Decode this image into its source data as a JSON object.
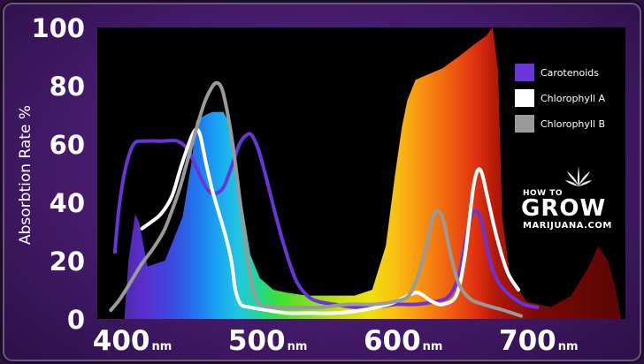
{
  "chart_data": {
    "type": "area",
    "title": "",
    "xlabel": "",
    "ylabel": "Absorbtion Rate %",
    "xlim": [
      365,
      755
    ],
    "ylim": [
      0,
      100
    ],
    "x_unit": "nm",
    "y_ticks": [
      0,
      20,
      40,
      60,
      80,
      100
    ],
    "x_ticks": [
      400,
      500,
      600,
      700
    ],
    "grid": false,
    "legend_position": "top-right",
    "background_spectrum": {
      "name": "",
      "points": [
        [
          385,
          0
        ],
        [
          388,
          20
        ],
        [
          393,
          36
        ],
        [
          396,
          33
        ],
        [
          402,
          18
        ],
        [
          415,
          20
        ],
        [
          428,
          35
        ],
        [
          435,
          55
        ],
        [
          438,
          68
        ],
        [
          445,
          70
        ],
        [
          450,
          71
        ],
        [
          458,
          71
        ],
        [
          464,
          66
        ],
        [
          470,
          45
        ],
        [
          478,
          22
        ],
        [
          485,
          14
        ],
        [
          495,
          10
        ],
        [
          505,
          9
        ],
        [
          520,
          8
        ],
        [
          540,
          8
        ],
        [
          555,
          8
        ],
        [
          568,
          10
        ],
        [
          578,
          25
        ],
        [
          585,
          50
        ],
        [
          590,
          66
        ],
        [
          594,
          75
        ],
        [
          600,
          82
        ],
        [
          610,
          84
        ],
        [
          620,
          86
        ],
        [
          632,
          90
        ],
        [
          643,
          94
        ],
        [
          652,
          97
        ],
        [
          657,
          100
        ],
        [
          661,
          85
        ],
        [
          664,
          35
        ],
        [
          670,
          14
        ],
        [
          682,
          6
        ],
        [
          700,
          4
        ],
        [
          715,
          8
        ],
        [
          728,
          18
        ],
        [
          735,
          25
        ],
        [
          742,
          20
        ],
        [
          748,
          10
        ],
        [
          752,
          0
        ]
      ]
    },
    "series": [
      {
        "name": "Carotenoids",
        "color": "#6a35d8",
        "points": [
          [
            378,
            23
          ],
          [
            381,
            38
          ],
          [
            386,
            52
          ],
          [
            392,
            60
          ],
          [
            400,
            61
          ],
          [
            412,
            61
          ],
          [
            424,
            61
          ],
          [
            432,
            58
          ],
          [
            438,
            52
          ],
          [
            443,
            47
          ],
          [
            447,
            44
          ],
          [
            452,
            43
          ],
          [
            458,
            45
          ],
          [
            464,
            52
          ],
          [
            470,
            60
          ],
          [
            475,
            63
          ],
          [
            479,
            63
          ],
          [
            484,
            58
          ],
          [
            490,
            48
          ],
          [
            497,
            35
          ],
          [
            505,
            22
          ],
          [
            512,
            13
          ],
          [
            520,
            8
          ],
          [
            528,
            6
          ],
          [
            540,
            5
          ],
          [
            555,
            4
          ],
          [
            570,
            4
          ],
          [
            585,
            5
          ],
          [
            600,
            5
          ],
          [
            615,
            6
          ],
          [
            625,
            8
          ],
          [
            632,
            15
          ],
          [
            637,
            27
          ],
          [
            641,
            35
          ],
          [
            645,
            37
          ],
          [
            649,
            33
          ],
          [
            653,
            24
          ],
          [
            657,
            17
          ],
          [
            662,
            12
          ],
          [
            670,
            8
          ],
          [
            680,
            5
          ],
          [
            690,
            4
          ]
        ]
      },
      {
        "name": "Chlorophyll A",
        "color": "#ffffff",
        "points": [
          [
            398,
            31
          ],
          [
            404,
            33
          ],
          [
            412,
            36
          ],
          [
            420,
            42
          ],
          [
            426,
            51
          ],
          [
            431,
            58
          ],
          [
            435,
            63
          ],
          [
            438,
            65
          ],
          [
            441,
            63
          ],
          [
            445,
            54
          ],
          [
            450,
            44
          ],
          [
            455,
            36
          ],
          [
            460,
            28
          ],
          [
            464,
            20
          ],
          [
            467,
            10
          ],
          [
            471,
            5
          ],
          [
            478,
            4
          ],
          [
            490,
            3
          ],
          [
            505,
            2
          ],
          [
            520,
            2
          ],
          [
            540,
            2
          ],
          [
            560,
            3
          ],
          [
            580,
            5
          ],
          [
            590,
            7
          ],
          [
            600,
            9
          ],
          [
            606,
            8
          ],
          [
            612,
            6
          ],
          [
            620,
            5
          ],
          [
            630,
            8
          ],
          [
            636,
            20
          ],
          [
            640,
            35
          ],
          [
            643,
            46
          ],
          [
            646,
            51
          ],
          [
            649,
            50
          ],
          [
            653,
            42
          ],
          [
            660,
            28
          ],
          [
            668,
            16
          ],
          [
            676,
            10
          ]
        ]
      },
      {
        "name": "Chlorophyll B",
        "color": "#9a9a9a",
        "points": [
          [
            375,
            3
          ],
          [
            382,
            7
          ],
          [
            390,
            13
          ],
          [
            398,
            19
          ],
          [
            406,
            24
          ],
          [
            414,
            30
          ],
          [
            420,
            37
          ],
          [
            426,
            45
          ],
          [
            432,
            55
          ],
          [
            438,
            65
          ],
          [
            444,
            74
          ],
          [
            449,
            79
          ],
          [
            453,
            81
          ],
          [
            457,
            79
          ],
          [
            461,
            71
          ],
          [
            465,
            60
          ],
          [
            470,
            42
          ],
          [
            475,
            24
          ],
          [
            480,
            10
          ],
          [
            485,
            5
          ],
          [
            495,
            4
          ],
          [
            510,
            4
          ],
          [
            530,
            4
          ],
          [
            550,
            5
          ],
          [
            570,
            5
          ],
          [
            585,
            6
          ],
          [
            595,
            8
          ],
          [
            602,
            15
          ],
          [
            608,
            25
          ],
          [
            613,
            35
          ],
          [
            617,
            37
          ],
          [
            621,
            33
          ],
          [
            626,
            22
          ],
          [
            632,
            12
          ],
          [
            640,
            7
          ],
          [
            650,
            5
          ],
          [
            665,
            3
          ],
          [
            678,
            1
          ]
        ]
      }
    ]
  },
  "legend": {
    "items": [
      {
        "label": "Carotenoids",
        "color": "#6a35d8"
      },
      {
        "label": "Chlorophyll A",
        "color": "#ffffff"
      },
      {
        "label": "Chlorophyll B",
        "color": "#9a9a9a"
      }
    ]
  },
  "brand": {
    "line1": "HOW TO",
    "line2": "GROW",
    "line3": "MARIJUANA.COM"
  },
  "colors": {
    "plot_background": "#000000",
    "frame": "#4a1d72"
  }
}
